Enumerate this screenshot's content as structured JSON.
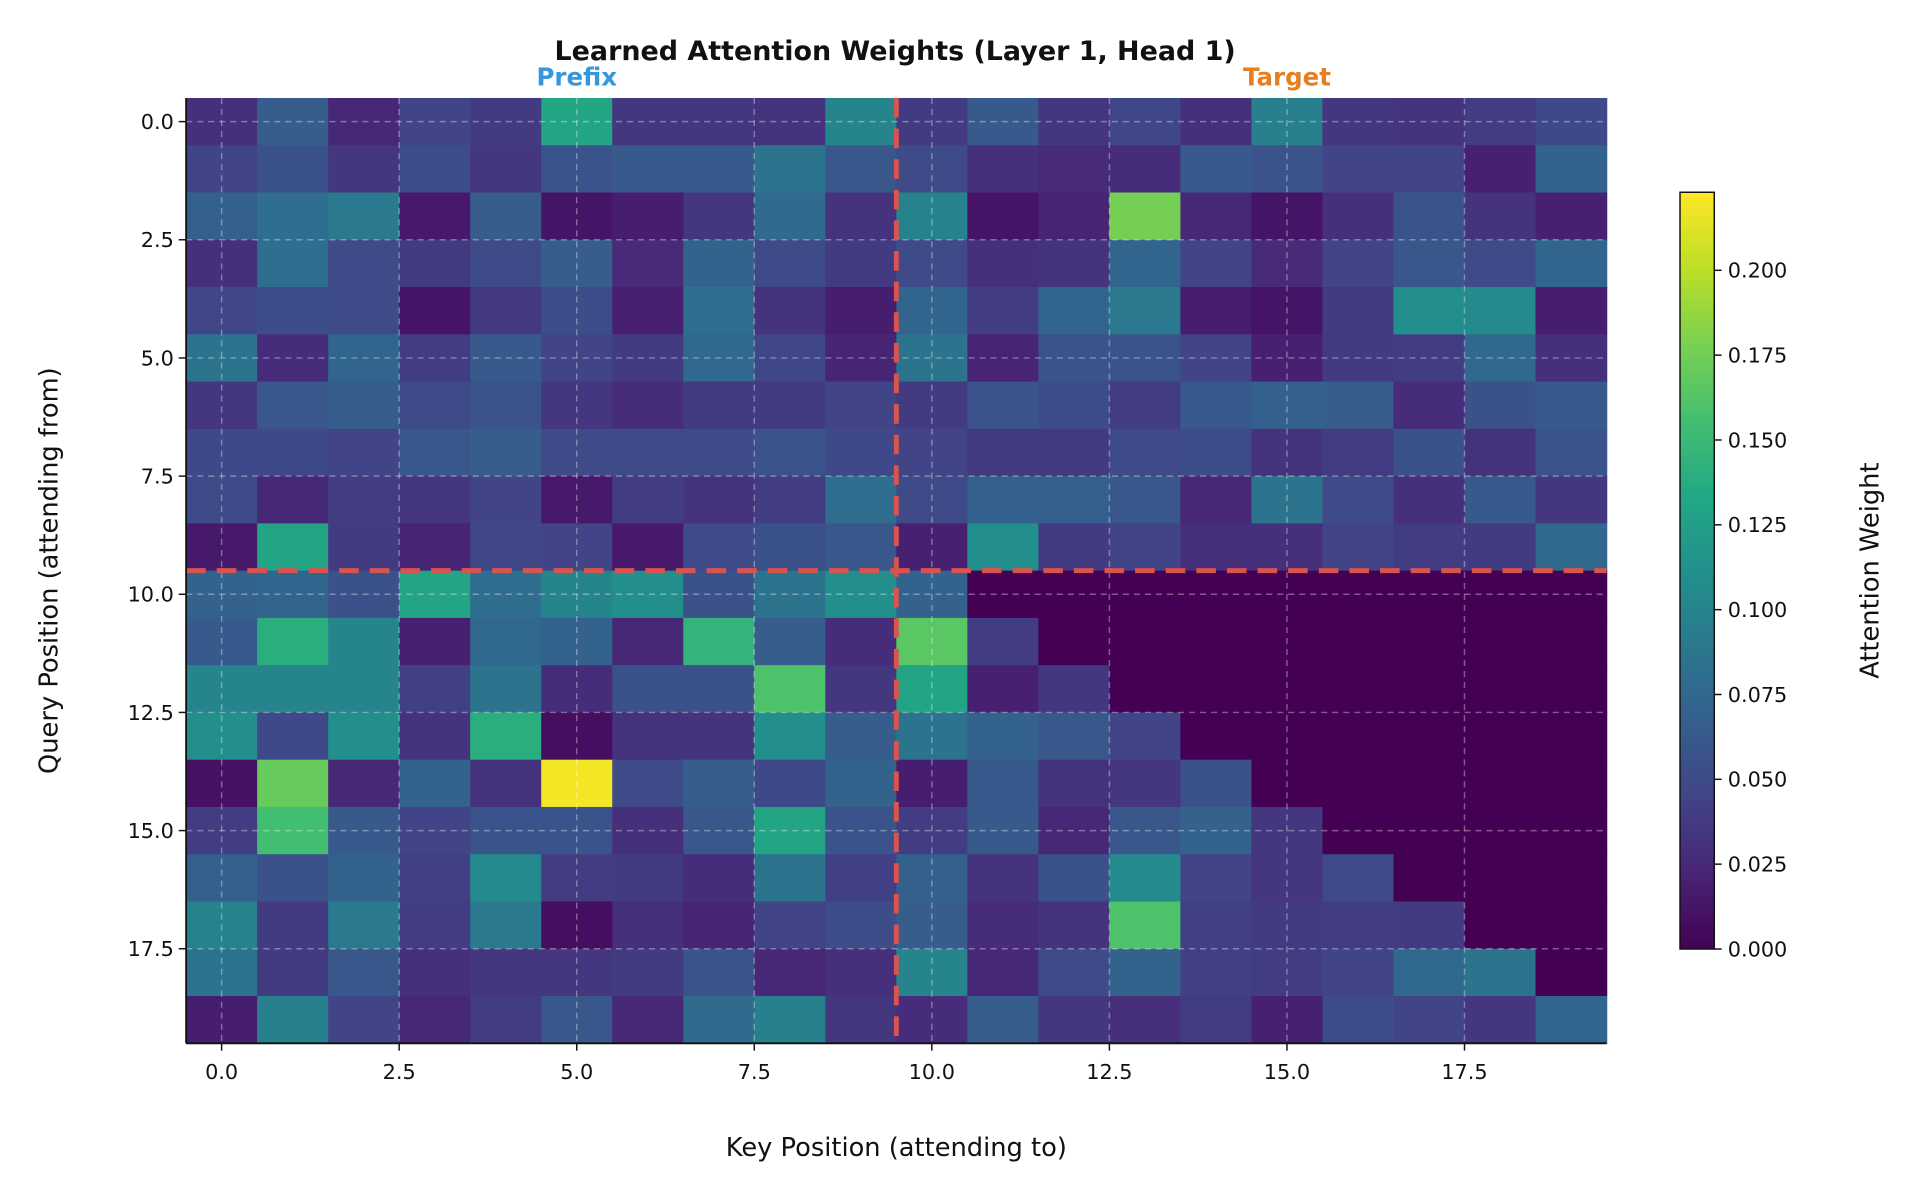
{
  "chart_data": {
    "type": "heatmap",
    "title": "Learned Attention Weights (Layer 1, Head 1)",
    "xlabel": "Key Position (attending to)",
    "ylabel": "Query Position (attending from)",
    "colorbar_label": "Attention Weight",
    "colormap": "viridis",
    "vmin": 0.0,
    "vmax": 0.223,
    "x_ticks": [
      "0.0",
      "2.5",
      "5.0",
      "7.5",
      "10.0",
      "12.5",
      "15.0",
      "17.5"
    ],
    "y_ticks": [
      "0.0",
      "2.5",
      "5.0",
      "7.5",
      "10.0",
      "12.5",
      "15.0",
      "17.5"
    ],
    "colorbar_ticks": [
      "0.000",
      "0.025",
      "0.050",
      "0.075",
      "0.100",
      "0.125",
      "0.150",
      "0.175",
      "0.200"
    ],
    "grid": true,
    "boundary": {
      "position": 9.5,
      "color": "#d9534f",
      "style": "dashed"
    },
    "region_labels": [
      {
        "text": "Prefix",
        "x": 5.0,
        "color": "#3498db"
      },
      {
        "text": "Target",
        "x": 15.0,
        "color": "#e67e22"
      }
    ],
    "values": [
      [
        0.03,
        0.065,
        0.025,
        0.045,
        0.038,
        0.13,
        0.035,
        0.035,
        0.033,
        0.1,
        0.038,
        0.062,
        0.035,
        0.047,
        0.03,
        0.095,
        0.035,
        0.033,
        0.04,
        0.048
      ],
      [
        0.045,
        0.055,
        0.035,
        0.052,
        0.035,
        0.058,
        0.062,
        0.062,
        0.085,
        0.06,
        0.05,
        0.03,
        0.027,
        0.028,
        0.062,
        0.058,
        0.045,
        0.045,
        0.02,
        0.07
      ],
      [
        0.068,
        0.08,
        0.09,
        0.015,
        0.065,
        0.012,
        0.018,
        0.035,
        0.078,
        0.033,
        0.098,
        0.012,
        0.022,
        0.176,
        0.025,
        0.012,
        0.03,
        0.058,
        0.033,
        0.02
      ],
      [
        0.03,
        0.08,
        0.05,
        0.038,
        0.05,
        0.065,
        0.027,
        0.07,
        0.05,
        0.038,
        0.05,
        0.03,
        0.033,
        0.072,
        0.045,
        0.027,
        0.045,
        0.06,
        0.05,
        0.072
      ],
      [
        0.047,
        0.052,
        0.05,
        0.012,
        0.037,
        0.052,
        0.02,
        0.08,
        0.033,
        0.018,
        0.072,
        0.04,
        0.072,
        0.09,
        0.018,
        0.012,
        0.038,
        0.11,
        0.105,
        0.018
      ],
      [
        0.085,
        0.028,
        0.072,
        0.04,
        0.062,
        0.045,
        0.038,
        0.075,
        0.047,
        0.022,
        0.085,
        0.022,
        0.058,
        0.058,
        0.045,
        0.02,
        0.038,
        0.04,
        0.075,
        0.03
      ],
      [
        0.035,
        0.06,
        0.065,
        0.05,
        0.058,
        0.035,
        0.028,
        0.038,
        0.038,
        0.045,
        0.038,
        0.058,
        0.052,
        0.04,
        0.062,
        0.068,
        0.065,
        0.028,
        0.055,
        0.062
      ],
      [
        0.048,
        0.048,
        0.045,
        0.06,
        0.065,
        0.05,
        0.05,
        0.05,
        0.058,
        0.048,
        0.045,
        0.038,
        0.038,
        0.05,
        0.052,
        0.033,
        0.04,
        0.055,
        0.032,
        0.058
      ],
      [
        0.05,
        0.025,
        0.04,
        0.035,
        0.045,
        0.015,
        0.04,
        0.033,
        0.04,
        0.08,
        0.05,
        0.068,
        0.068,
        0.06,
        0.025,
        0.085,
        0.05,
        0.03,
        0.062,
        0.035
      ],
      [
        0.015,
        0.13,
        0.038,
        0.022,
        0.047,
        0.045,
        0.015,
        0.05,
        0.055,
        0.06,
        0.02,
        0.11,
        0.038,
        0.045,
        0.03,
        0.03,
        0.045,
        0.04,
        0.038,
        0.075
      ],
      [
        0.07,
        0.072,
        0.055,
        0.13,
        0.08,
        0.1,
        0.11,
        0.055,
        0.085,
        0.11,
        0.07,
        0,
        0,
        0,
        0,
        0,
        0,
        0,
        0,
        0
      ],
      [
        0.062,
        0.14,
        0.1,
        0.02,
        0.075,
        0.07,
        0.025,
        0.145,
        0.065,
        0.028,
        0.165,
        0.04,
        0,
        0,
        0,
        0,
        0,
        0,
        0,
        0
      ],
      [
        0.1,
        0.1,
        0.1,
        0.042,
        0.085,
        0.028,
        0.055,
        0.055,
        0.16,
        0.035,
        0.13,
        0.02,
        0.035,
        0,
        0,
        0,
        0,
        0,
        0,
        0
      ],
      [
        0.11,
        0.048,
        0.11,
        0.033,
        0.14,
        0.008,
        0.032,
        0.033,
        0.11,
        0.065,
        0.085,
        0.07,
        0.06,
        0.045,
        0,
        0,
        0,
        0,
        0,
        0
      ],
      [
        0.01,
        0.17,
        0.025,
        0.07,
        0.032,
        0.22,
        0.05,
        0.065,
        0.048,
        0.07,
        0.018,
        0.062,
        0.032,
        0.035,
        0.055,
        0,
        0,
        0,
        0,
        0
      ],
      [
        0.04,
        0.155,
        0.062,
        0.045,
        0.058,
        0.058,
        0.03,
        0.06,
        0.13,
        0.058,
        0.04,
        0.062,
        0.025,
        0.06,
        0.07,
        0.035,
        0,
        0,
        0,
        0
      ],
      [
        0.068,
        0.055,
        0.07,
        0.042,
        0.105,
        0.04,
        0.038,
        0.028,
        0.085,
        0.042,
        0.068,
        0.033,
        0.055,
        0.105,
        0.045,
        0.035,
        0.05,
        0,
        0,
        0
      ],
      [
        0.098,
        0.038,
        0.09,
        0.04,
        0.09,
        0.008,
        0.03,
        0.022,
        0.045,
        0.052,
        0.065,
        0.028,
        0.033,
        0.16,
        0.042,
        0.038,
        0.04,
        0.038,
        0,
        0
      ],
      [
        0.085,
        0.038,
        0.06,
        0.03,
        0.035,
        0.035,
        0.038,
        0.058,
        0.025,
        0.03,
        0.1,
        0.025,
        0.05,
        0.07,
        0.042,
        0.04,
        0.045,
        0.075,
        0.085,
        0
      ],
      [
        0.018,
        0.095,
        0.045,
        0.025,
        0.04,
        0.06,
        0.025,
        0.078,
        0.095,
        0.035,
        0.028,
        0.065,
        0.035,
        0.03,
        0.04,
        0.02,
        0.052,
        0.045,
        0.035,
        0.072
      ]
    ]
  }
}
